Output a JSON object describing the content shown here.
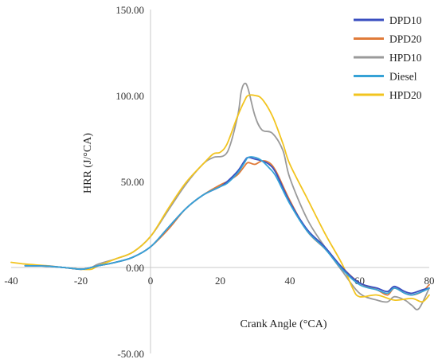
{
  "chart_data": {
    "type": "line",
    "title": "",
    "xlabel": "Crank Angle (°CA)",
    "ylabel": "HRR (J/°CA)",
    "xlim": [
      -40,
      80
    ],
    "ylim": [
      -50,
      150
    ],
    "x_ticks": [
      "-40",
      "-20",
      "0",
      "20",
      "40",
      "60",
      "80"
    ],
    "y_ticks": [
      "150.00",
      "100.00",
      "50.00",
      "0.00",
      "-50.00"
    ],
    "grid": false,
    "legend_position": "top-right",
    "series": [
      {
        "name": "DPD10",
        "color": "#3a4fc0",
        "x": [
          -36,
          -30,
          -25,
          -20,
          -17,
          -15,
          -10,
          -5,
          0,
          5,
          10,
          15,
          20,
          22,
          25,
          27,
          28,
          30,
          32,
          34,
          36,
          40,
          45,
          50,
          55,
          60,
          65,
          68,
          70,
          73,
          75,
          78,
          80
        ],
        "y": [
          1,
          0.8,
          0,
          -1,
          0,
          1,
          3,
          6,
          12,
          23,
          34,
          42,
          47,
          50,
          56,
          62,
          64,
          63,
          62,
          60,
          55,
          38,
          22,
          12,
          0,
          -9,
          -12,
          -14,
          -11,
          -14,
          -15,
          -13,
          -12
        ]
      },
      {
        "name": "DPD20",
        "color": "#e07b39",
        "x": [
          -36,
          -30,
          -25,
          -20,
          -17,
          -15,
          -10,
          -5,
          0,
          5,
          10,
          15,
          20,
          22,
          25,
          27,
          28,
          30,
          32,
          34,
          36,
          40,
          45,
          50,
          55,
          60,
          65,
          68,
          70,
          73,
          75,
          78,
          80
        ],
        "y": [
          1,
          0.8,
          0,
          -1,
          0,
          1,
          3,
          6,
          12,
          22,
          34,
          42,
          48,
          50,
          54,
          59,
          61,
          60,
          62,
          61,
          56,
          39,
          21,
          11,
          0,
          -9,
          -13,
          -16,
          -12,
          -15,
          -16,
          -14,
          -10
        ]
      },
      {
        "name": "HPD10",
        "color": "#9a9a9a",
        "x": [
          -36,
          -30,
          -25,
          -20,
          -17,
          -15,
          -10,
          -5,
          0,
          5,
          10,
          15,
          18,
          22,
          25,
          26,
          27,
          28,
          30,
          32,
          35,
          38,
          40,
          45,
          50,
          55,
          60,
          65,
          68,
          70,
          73,
          75,
          77,
          80
        ],
        "y": [
          1,
          1,
          0,
          -1,
          0,
          2,
          5,
          9,
          18,
          33,
          48,
          60,
          64,
          67,
          88,
          102,
          107,
          104,
          88,
          80,
          78,
          68,
          52,
          28,
          12,
          -2,
          -15,
          -19,
          -20,
          -17,
          -19,
          -22,
          -24,
          -12
        ]
      },
      {
        "name": "Diesel",
        "color": "#36a2d6",
        "x": [
          -36,
          -30,
          -25,
          -20,
          -17,
          -15,
          -10,
          -5,
          0,
          5,
          10,
          15,
          20,
          22,
          25,
          27,
          28,
          30,
          32,
          34,
          36,
          40,
          45,
          50,
          55,
          60,
          65,
          68,
          70,
          73,
          75,
          78,
          80
        ],
        "y": [
          1,
          0.8,
          0,
          -1,
          0,
          1,
          3,
          6,
          12,
          23,
          34,
          42,
          47,
          49,
          55,
          61,
          64,
          64,
          62,
          58,
          53,
          37,
          21,
          11,
          -1,
          -10,
          -13,
          -15,
          -12,
          -15,
          -16,
          -14,
          -12
        ]
      },
      {
        "name": "HPD20",
        "color": "#f2c41f",
        "x": [
          -40,
          -36,
          -30,
          -25,
          -20,
          -17,
          -15,
          -10,
          -5,
          0,
          5,
          10,
          15,
          18,
          20,
          22,
          25,
          27,
          28,
          30,
          32,
          35,
          38,
          40,
          45,
          50,
          55,
          58,
          60,
          65,
          70,
          75,
          78,
          80
        ],
        "y": [
          3,
          2,
          1,
          0,
          -1,
          -1,
          1,
          5,
          9,
          18,
          34,
          49,
          60,
          66,
          67,
          72,
          88,
          97,
          100,
          100,
          98,
          88,
          72,
          60,
          40,
          20,
          2,
          -12,
          -17,
          -16,
          -19,
          -18,
          -20,
          -16
        ]
      }
    ]
  }
}
